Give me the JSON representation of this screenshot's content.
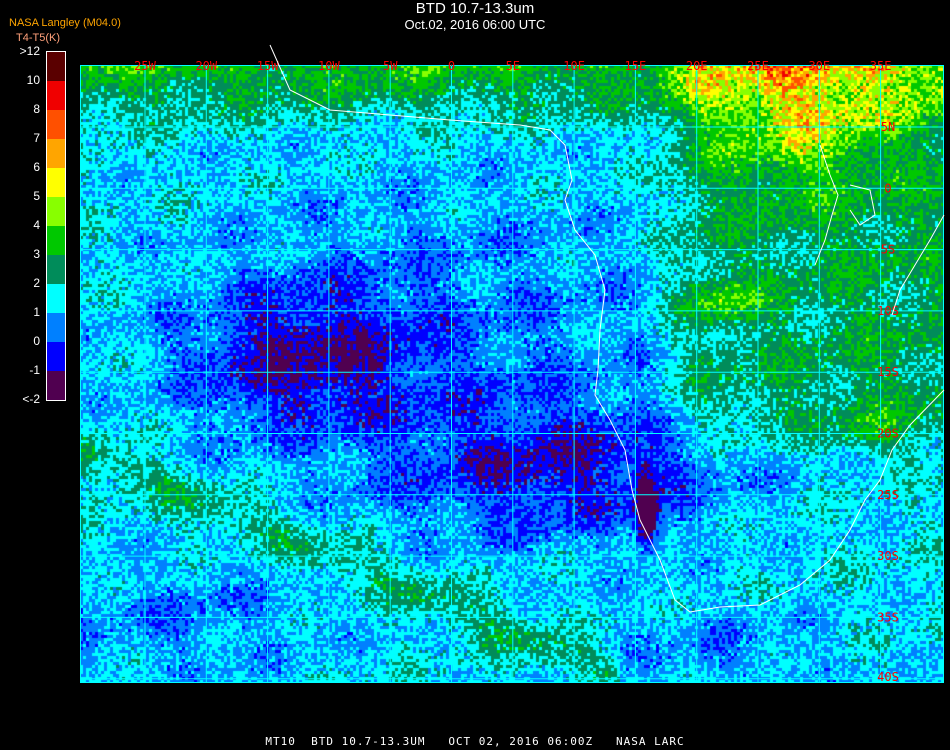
{
  "header": {
    "title": "BTD 10.7-13.3um",
    "subtitle": "Oct.02, 2016 06:00 UTC",
    "organization": "NASA Langley (M04.0)"
  },
  "colorbar": {
    "title": "T4-T5(K)",
    "tick_labels": [
      ">12",
      "10",
      "8",
      "7",
      "6",
      "5",
      "4",
      "3",
      "2",
      "1",
      "0",
      "-1",
      "<-2"
    ],
    "colors": [
      "#5a0000",
      "#f00000",
      "#ff5000",
      "#ffa500",
      "#ffff00",
      "#88ff00",
      "#00c800",
      "#008c5a",
      "#00ffff",
      "#0080ff",
      "#0000ff",
      "#500050"
    ]
  },
  "map": {
    "longitude_labels": [
      "25W",
      "20W",
      "15W",
      "10W",
      "5W",
      "0",
      "5E",
      "10E",
      "15E",
      "20E",
      "25E",
      "30E",
      "35E"
    ],
    "latitude_labels": [
      "5N",
      "0",
      "5S",
      "10S",
      "15S",
      "20S",
      "25S",
      "30S",
      "35S",
      "40S"
    ],
    "grid_color": "#00ffff",
    "coastline_color": "#ffffff",
    "label_color": "#ff0000"
  },
  "footer": {
    "text": "MT10  BTD 10.7-13.3UM   OCT 02, 2016 06:00Z   NASA LARC"
  }
}
